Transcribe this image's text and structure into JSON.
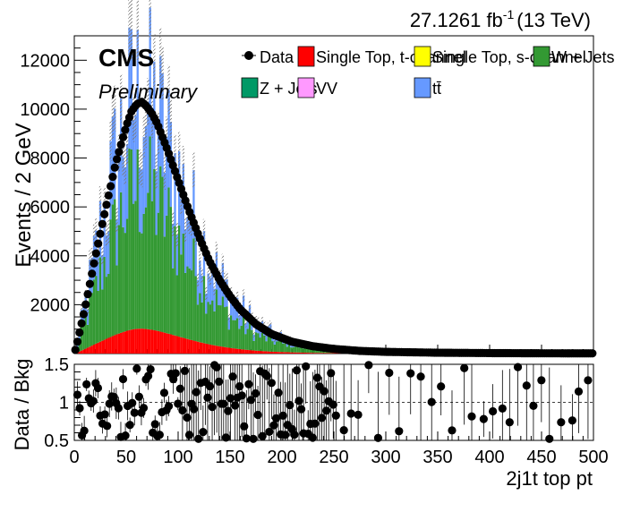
{
  "header": {
    "lumi": "27.1261 fb",
    "lumi_exp": "-1",
    "energy": "(13 TeV)",
    "experiment": "CMS",
    "status": "Preliminary"
  },
  "legend": [
    {
      "label": "Data",
      "kind": "marker",
      "color": "#000000"
    },
    {
      "label": "Single Top, t-channel",
      "kind": "box",
      "color": "#ff0000"
    },
    {
      "label": "Single Top, s-channel",
      "kind": "box",
      "color": "#ffff00"
    },
    {
      "label": "W + Jets",
      "kind": "box",
      "color": "#339933"
    },
    {
      "label": "Z + Jets",
      "kind": "box",
      "color": "#009966"
    },
    {
      "label": "VV",
      "kind": "box",
      "color": "#ff99ff"
    },
    {
      "label": "tt̄",
      "kind": "box",
      "color": "#6699ff"
    }
  ],
  "chart_data": [
    {
      "type": "bar",
      "subtype": "stacked-histogram",
      "ylabel": "Events / 2 GeV",
      "xlim": [
        0,
        500
      ],
      "ylim": [
        0,
        13000
      ],
      "yticks": [
        2000,
        4000,
        6000,
        8000,
        10000,
        12000
      ],
      "bin_width": 2,
      "stack_order": [
        "Single Top, t-channel",
        "Single Top, s-channel",
        "W + Jets",
        "Z + Jets",
        "VV",
        "tt̄"
      ],
      "components": {
        "Single Top, t-channel": {
          "peak_x": 65,
          "peak_y": 1100,
          "color": "#ff0000"
        },
        "W + Jets": {
          "peak_x": 65,
          "peak_y": 6000,
          "color": "#339933"
        },
        "tt̄": {
          "peak_x": 65,
          "peak_y": 4000,
          "color": "#6699ff"
        }
      },
      "data_series": {
        "name": "Data",
        "x": [
          2,
          10,
          20,
          30,
          40,
          50,
          55,
          60,
          65,
          70,
          75,
          80,
          90,
          100,
          110,
          120,
          130,
          140,
          150,
          160,
          175,
          190,
          210,
          230,
          250,
          275,
          300,
          350,
          400,
          450,
          500
        ],
        "y": [
          300,
          1800,
          3900,
          5900,
          7800,
          9300,
          9900,
          10200,
          10300,
          10100,
          9800,
          9400,
          8300,
          7100,
          5900,
          4800,
          3800,
          3000,
          2350,
          1800,
          1200,
          800,
          480,
          300,
          190,
          110,
          70,
          35,
          20,
          12,
          8
        ]
      },
      "grid": false
    },
    {
      "type": "scatter",
      "subtype": "ratio",
      "ylabel": "Data / Bkg",
      "xlabel": "2j1t top pt",
      "xlim": [
        0,
        500
      ],
      "ylim": [
        0.5,
        1.5
      ],
      "yticks": [
        0.5,
        1,
        1.5
      ],
      "xticks": [
        0,
        50,
        100,
        150,
        200,
        250,
        300,
        350,
        400,
        450,
        500
      ],
      "reference_line": 1,
      "grid": false
    }
  ]
}
